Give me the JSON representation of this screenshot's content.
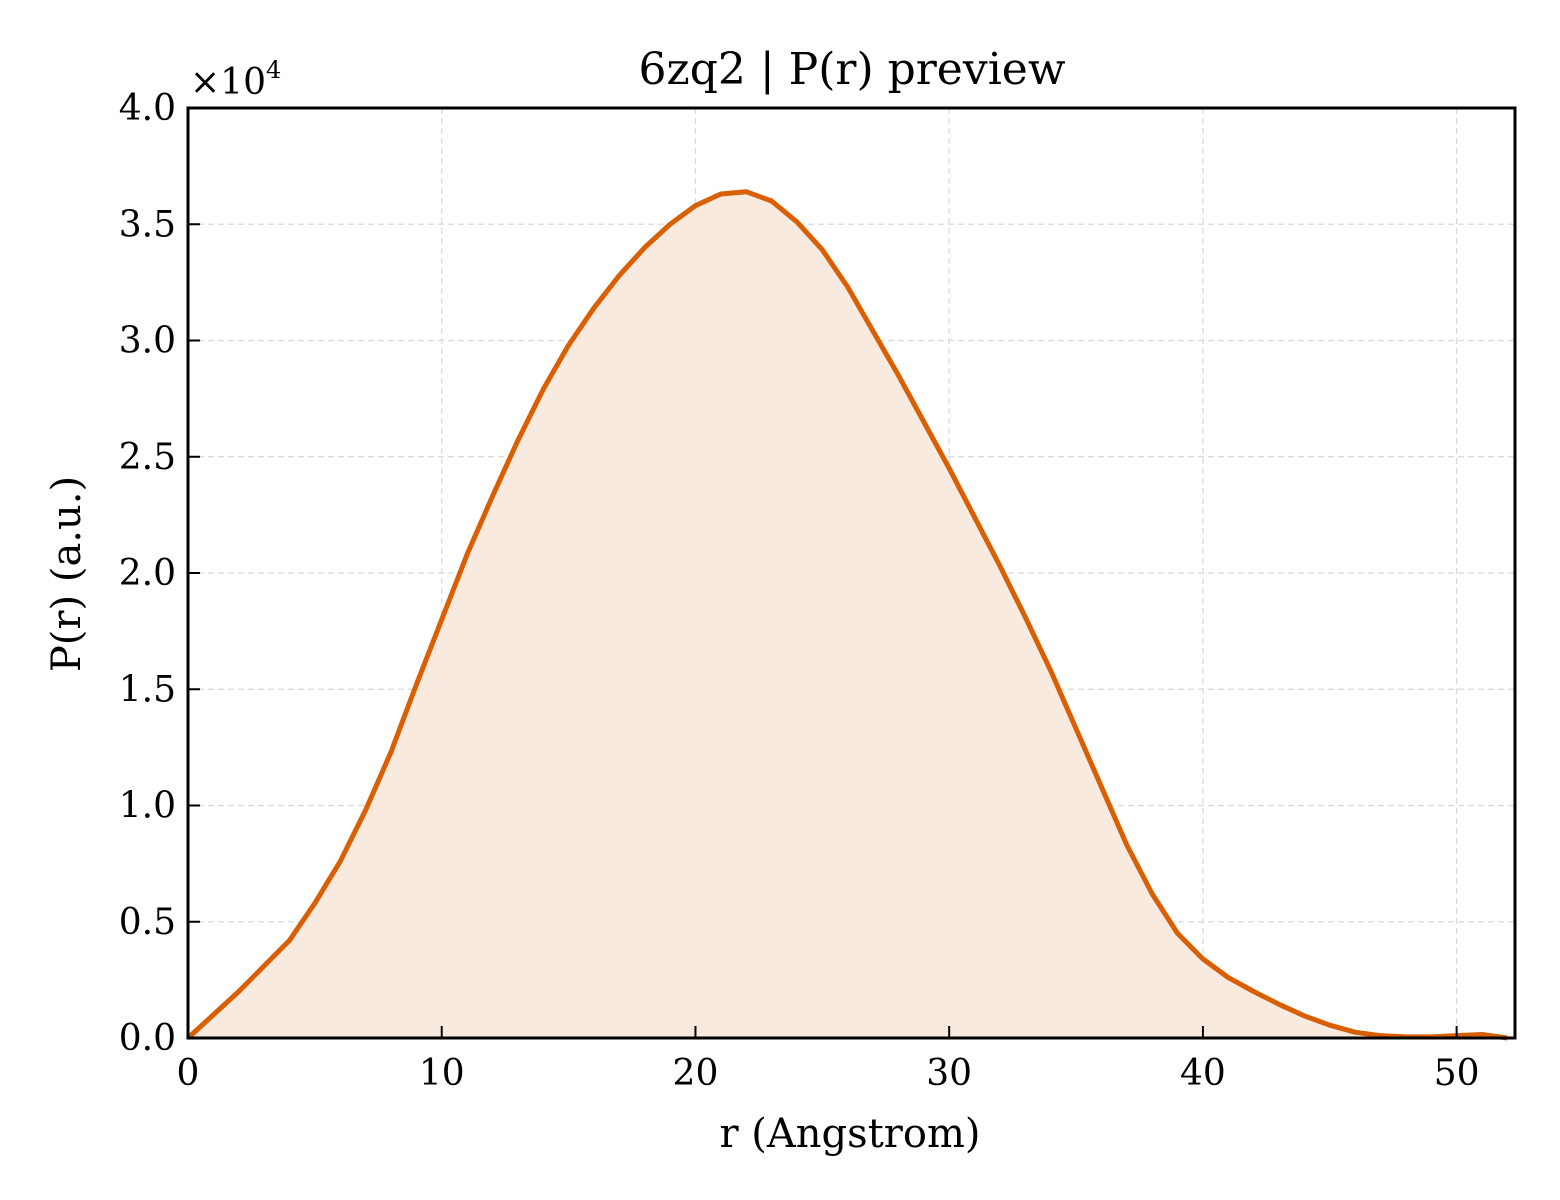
{
  "chart_data": {
    "type": "area",
    "title": "6zq2 | P(r) preview",
    "xlabel": "r (Angstrom)",
    "ylabel": "P(r) (a.u.)",
    "y_multiplier": "×10",
    "y_multiplier_exp": "4",
    "xlim": [
      0,
      52.3
    ],
    "ylim": [
      0,
      40000
    ],
    "xticks": [
      0,
      10,
      20,
      30,
      40,
      50
    ],
    "xtick_labels": [
      "0",
      "10",
      "20",
      "30",
      "40",
      "50"
    ],
    "yticks": [
      0,
      5000,
      10000,
      15000,
      20000,
      25000,
      30000,
      35000,
      40000
    ],
    "ytick_labels": [
      "0.0",
      "0.5",
      "1.0",
      "1.5",
      "2.0",
      "2.5",
      "3.0",
      "3.5",
      "4.0"
    ],
    "grid": true,
    "line_color": "#d95f02",
    "fill_color": "#f9eadf",
    "series": [
      {
        "x": [
          0,
          1,
          2,
          3,
          4,
          5,
          6,
          7,
          8,
          9,
          10,
          11,
          12,
          13,
          14,
          15,
          16,
          17,
          18,
          19,
          20,
          21,
          22,
          23,
          24,
          25,
          26,
          27,
          28,
          29,
          30,
          31,
          32,
          33,
          34,
          35,
          36,
          37,
          38,
          39,
          40,
          41,
          42,
          43,
          44,
          45,
          46,
          47,
          48,
          49,
          50,
          51,
          52
        ],
        "y": [
          0,
          1000,
          2000,
          3100,
          4200,
          5800,
          7600,
          9800,
          12300,
          15200,
          18000,
          20800,
          23300,
          25700,
          27900,
          29800,
          31400,
          32800,
          34000,
          35000,
          35800,
          36300,
          36400,
          36000,
          35100,
          33900,
          32300,
          30400,
          28500,
          26500,
          24500,
          22400,
          20300,
          18100,
          15800,
          13300,
          10800,
          8300,
          6200,
          4500,
          3400,
          2600,
          2000,
          1450,
          950,
          550,
          250,
          100,
          50,
          50,
          100,
          150,
          0
        ]
      }
    ]
  }
}
